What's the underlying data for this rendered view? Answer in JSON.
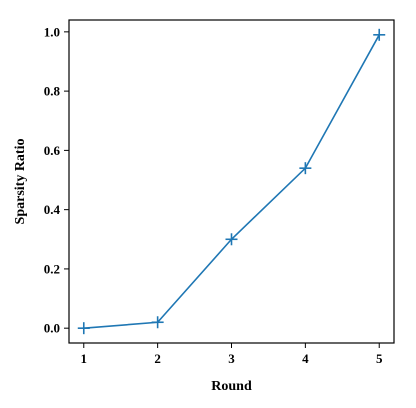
{
  "chart_data": {
    "type": "line",
    "title": "",
    "xlabel": "Round",
    "ylabel": "Sparsity Ratio",
    "x": [
      1,
      2,
      3,
      4,
      5
    ],
    "series": [
      {
        "values": [
          0.0,
          0.02,
          0.3,
          0.54,
          0.99
        ],
        "color": "#1f77b4",
        "marker": "plus"
      }
    ],
    "xticks": [
      1,
      2,
      3,
      4,
      5
    ],
    "xtick_labels": [
      "1",
      "2",
      "3",
      "4",
      "5"
    ],
    "yticks": [
      0.0,
      0.2,
      0.4,
      0.6,
      0.8,
      1.0
    ],
    "ytick_labels": [
      "0.0",
      "0.2",
      "0.4",
      "0.6",
      "0.8",
      "1.0"
    ],
    "xlim": [
      0.8,
      5.2
    ],
    "ylim": [
      -0.05,
      1.04
    ],
    "grid": false,
    "legend": "none"
  }
}
